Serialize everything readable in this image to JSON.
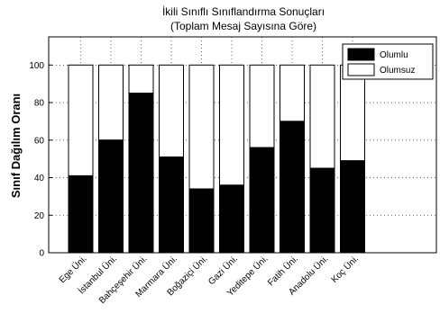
{
  "chart_data": {
    "type": "bar",
    "stacked": true,
    "title_line1": "İkili Sınıflı Sınıflandırma Sonuçları",
    "title_line2": "(Toplam Mesaj Sayısına Göre)",
    "ylabel": "Sınıf Dağılım Oranı",
    "xlabel": "",
    "ylim": [
      0,
      115
    ],
    "yticks": [
      0,
      20,
      40,
      60,
      80,
      100
    ],
    "grid": true,
    "legend_position": "top-right",
    "categories": [
      "Ege Üni.",
      "İstanbul Üni.",
      "Bahçeşehir Üni.",
      "Marmara Üni.",
      "Boğaziçi Üni.",
      "Gazi Üni.",
      "Yeditepe Üni.",
      "Fatih Üni.",
      "Anadolu Üni.",
      "Koç Üni."
    ],
    "series": [
      {
        "name": "Olumlu",
        "color": "#000000",
        "values": [
          41,
          60,
          85,
          51,
          34,
          36,
          56,
          70,
          45,
          49
        ]
      },
      {
        "name": "Olumsuz",
        "color": "#ffffff",
        "values": [
          59,
          40,
          15,
          49,
          66,
          64,
          44,
          30,
          55,
          51
        ]
      }
    ]
  }
}
